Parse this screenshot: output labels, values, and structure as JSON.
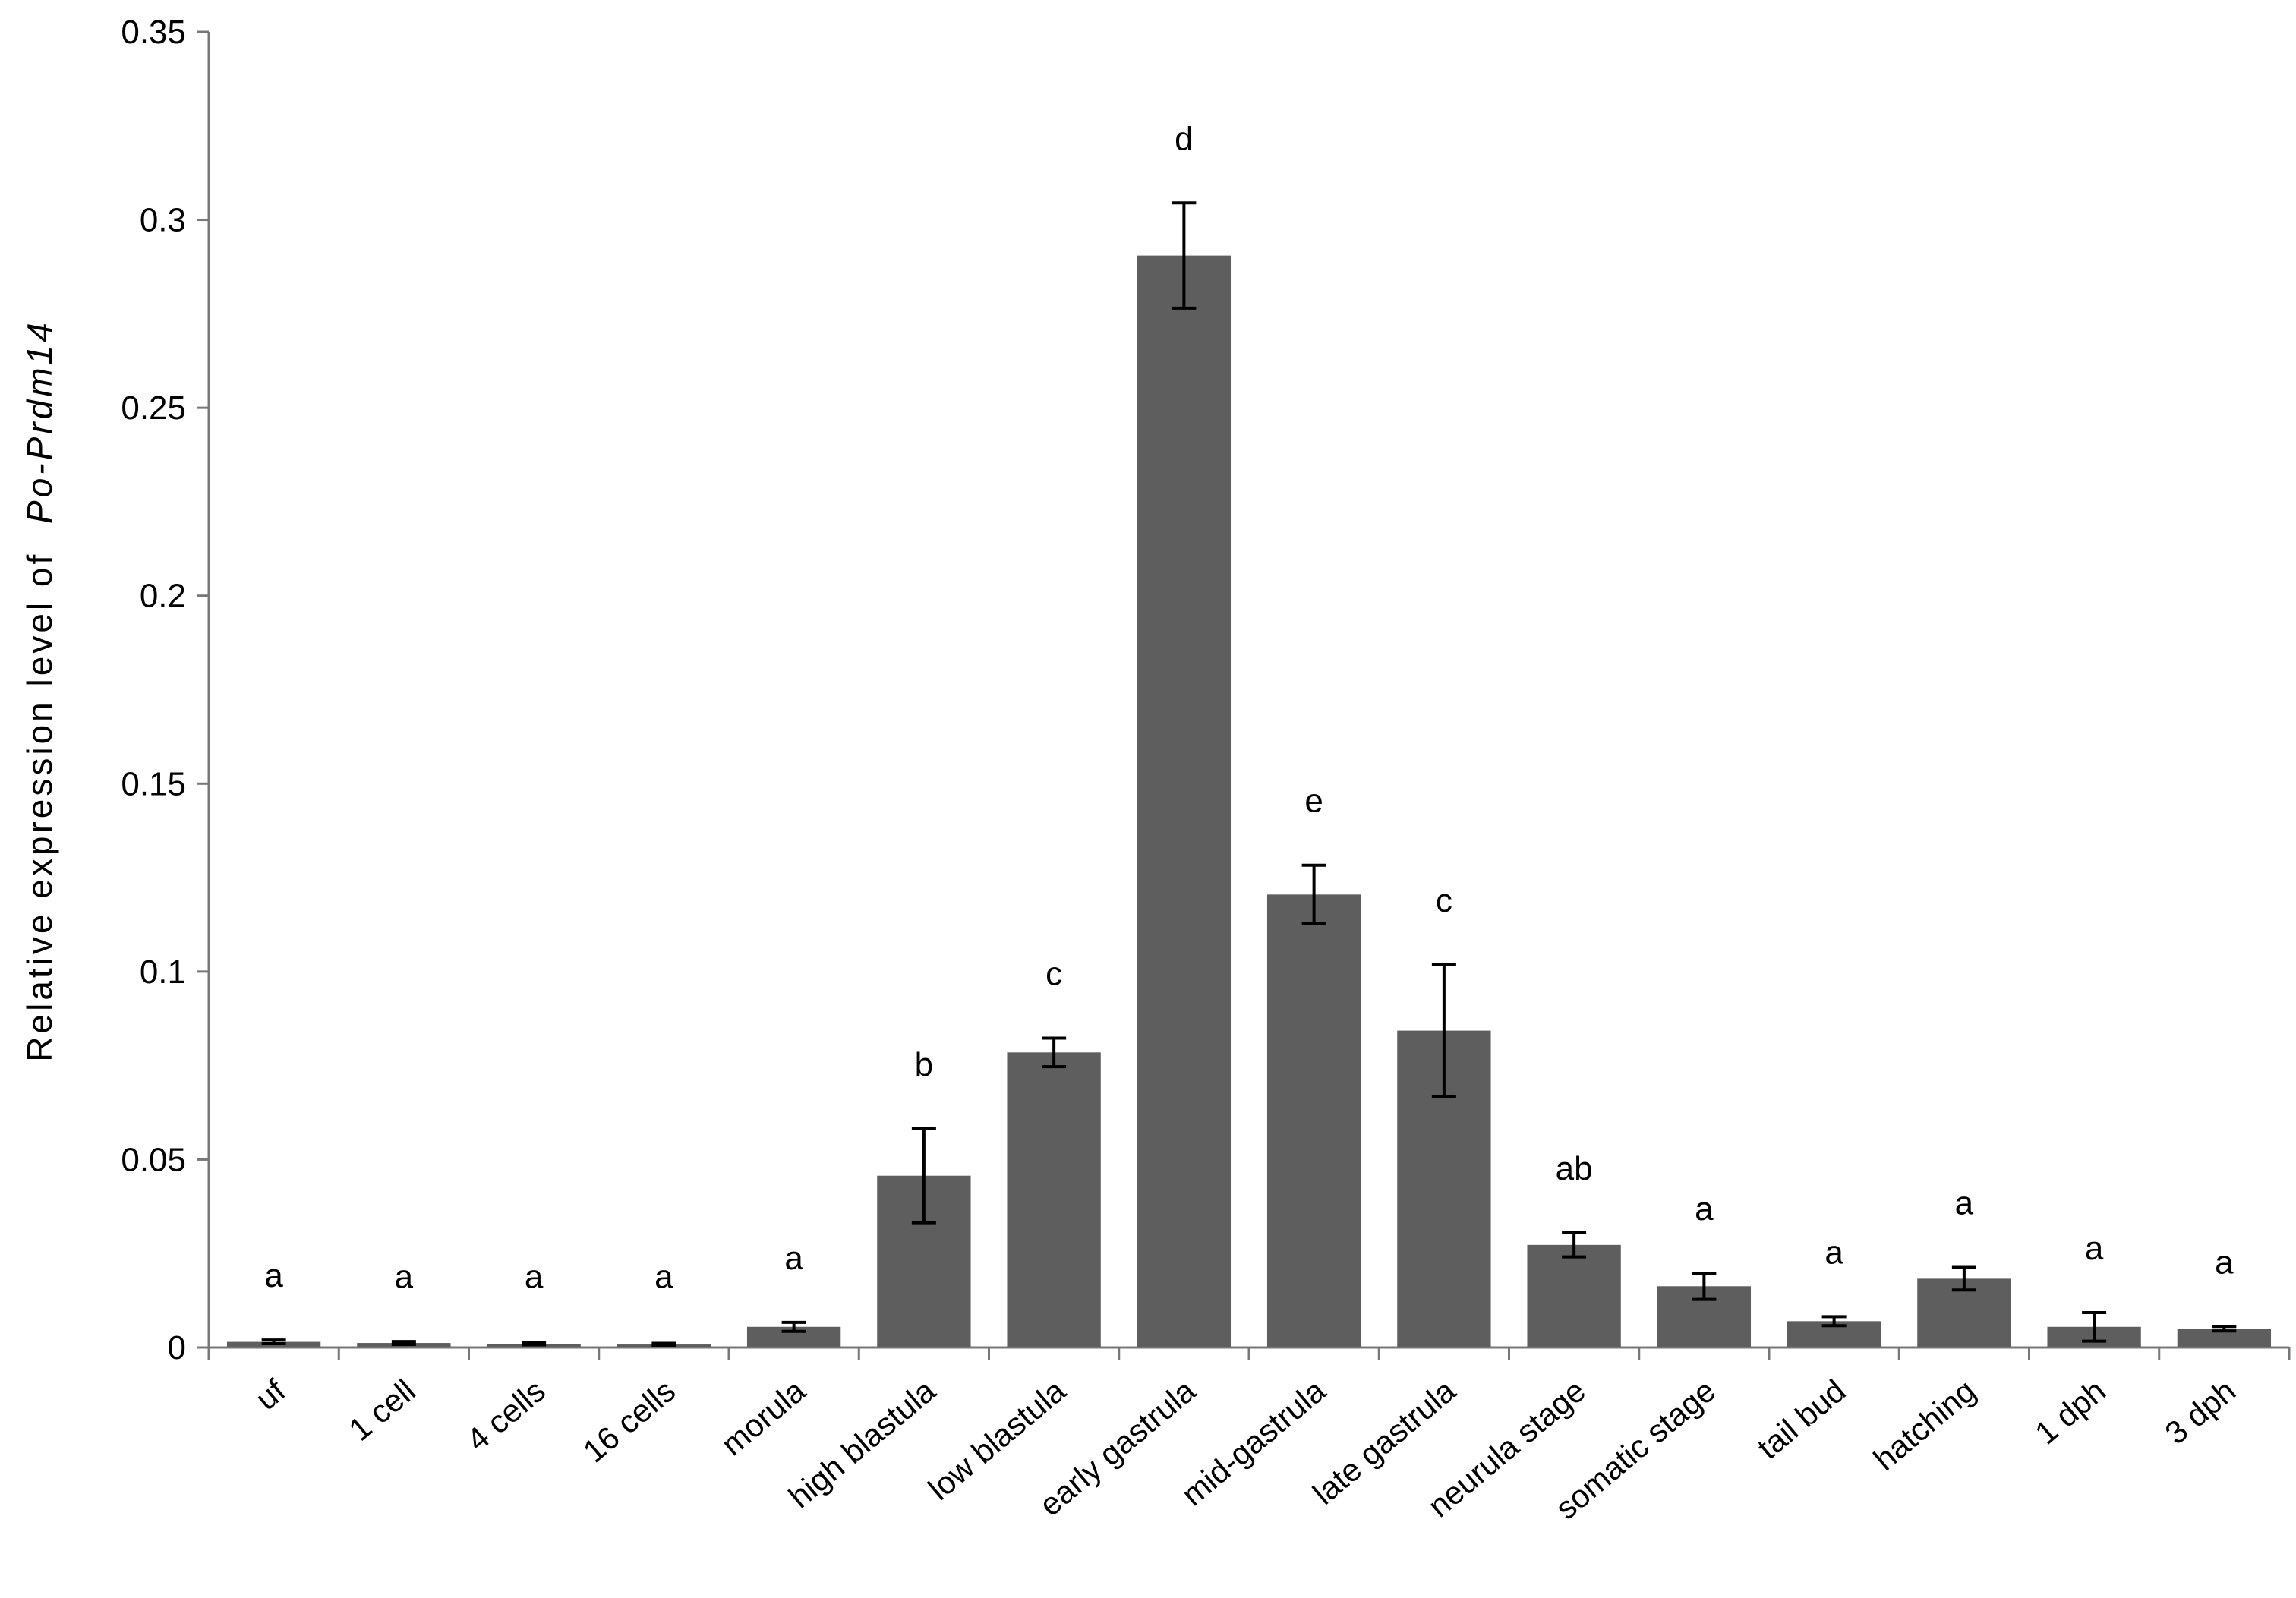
{
  "chart_data": {
    "type": "bar",
    "ylabel": "Relative expression level of",
    "ylabel_gene": "Po-Prdm14",
    "ylim": [
      0,
      0.35
    ],
    "yticks": [
      "0",
      "0.05",
      "0.1",
      "0.15",
      "0.2",
      "0.25",
      "0.3",
      "0.35"
    ],
    "ytick_values": [
      0,
      0.05,
      0.1,
      0.15,
      0.2,
      0.25,
      0.3,
      0.35
    ],
    "grid": false,
    "legend": "none",
    "bar_color": "#5e5e5e",
    "categories": [
      "uf",
      "1 cell",
      "4 cells",
      "16 cells",
      "morula",
      "high blastula",
      "low blastula",
      "early gastrula",
      "mid-gastrula",
      "late gastrula",
      "neurula stage",
      "somatic stage",
      "tail bud",
      "hatching",
      "1 dph",
      "3 dph"
    ],
    "values": [
      0.0015,
      0.0012,
      0.001,
      0.0008,
      0.0055,
      0.0457,
      0.0785,
      0.2905,
      0.1205,
      0.0843,
      0.0273,
      0.0163,
      0.007,
      0.0183,
      0.0055,
      0.005
    ],
    "errors": [
      0.0005,
      0.0004,
      0.0003,
      0.0003,
      0.0012,
      0.0125,
      0.0038,
      0.014,
      0.0078,
      0.0175,
      0.0032,
      0.0035,
      0.0012,
      0.003,
      0.0038,
      0.0006
    ],
    "significance": [
      "a",
      "a",
      "a",
      "a",
      "a",
      "b",
      "c",
      "d",
      "e",
      "c",
      "ab",
      "a",
      "a",
      "a",
      "a",
      "a"
    ]
  }
}
